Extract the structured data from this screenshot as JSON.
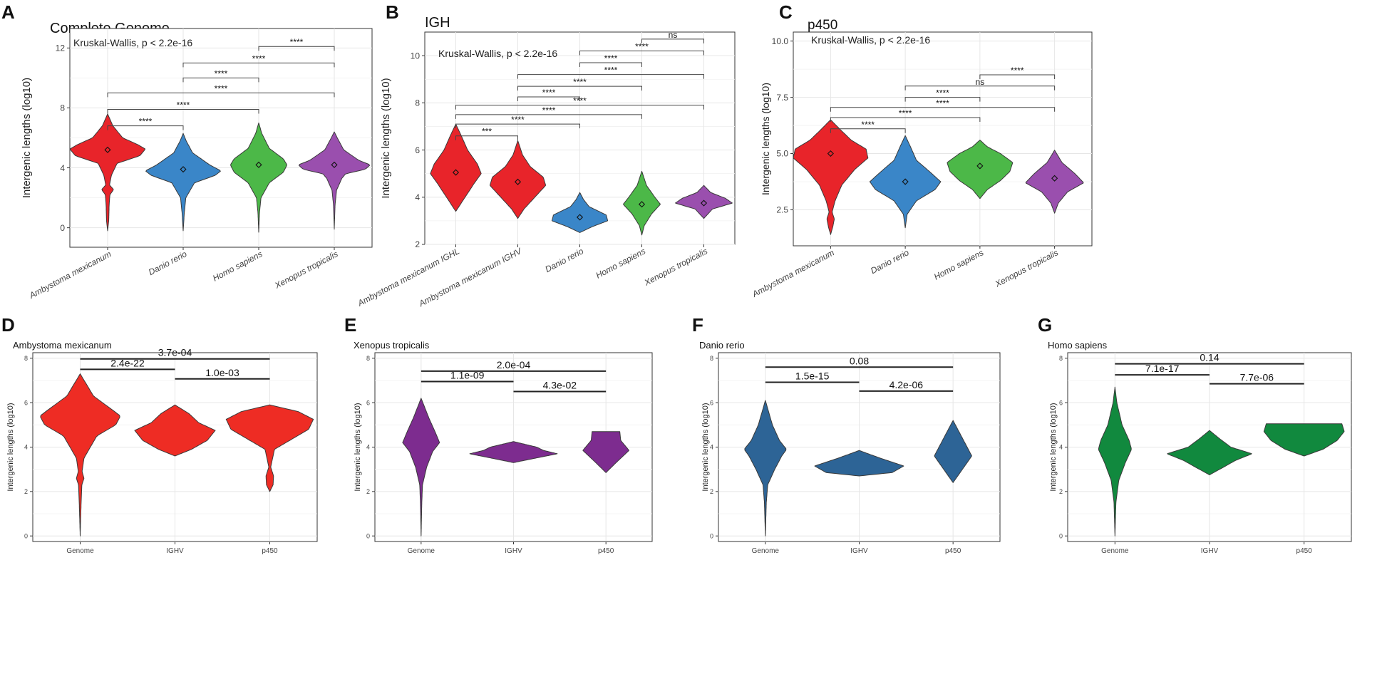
{
  "chart_data": [
    {
      "type": "violin",
      "panel": "A",
      "title": "Complete Genome",
      "annotation": "Kruskal-Wallis, p < 2.2e-16",
      "ylabel": "Intergenic lengths (log10)",
      "xlabel": "",
      "ylim": [
        -1.3,
        13.3
      ],
      "yticks": [
        "0",
        "4",
        "8",
        "12"
      ],
      "categories": [
        "Ambystoma mexicanum",
        "Danio rerio",
        "Homo sapiens",
        "Xenopus tropicalis"
      ],
      "colors": [
        "#e8242a",
        "#3a86c8",
        "#4cb848",
        "#9a4fae"
      ],
      "grid": true,
      "series": [
        {
          "category": "Ambystoma mexicanum",
          "mean": 5.2,
          "min": -0.2,
          "max": 7.6
        },
        {
          "category": "Danio rerio",
          "mean": 3.9,
          "min": -0.2,
          "max": 6.3
        },
        {
          "category": "Homo sapiens",
          "mean": 4.2,
          "min": -0.3,
          "max": 7.0
        },
        {
          "category": "Xenopus tropicalis",
          "mean": 4.2,
          "min": -0.1,
          "max": 6.4
        }
      ],
      "comparisons": [
        {
          "label": "****",
          "from": 2,
          "to": 3,
          "y": 12.1
        },
        {
          "label": "****",
          "from": 1,
          "to": 3,
          "y": 11.0
        },
        {
          "label": "****",
          "from": 1,
          "to": 2,
          "y": 10.0
        },
        {
          "label": "****",
          "from": 0,
          "to": 3,
          "y": 9.0
        },
        {
          "label": "****",
          "from": 0,
          "to": 2,
          "y": 7.9
        },
        {
          "label": "****",
          "from": 0,
          "to": 1,
          "y": 6.8
        }
      ]
    },
    {
      "type": "violin",
      "panel": "B",
      "title": "IGH",
      "annotation": "Kruskal-Wallis, p < 2.2e-16",
      "ylabel": "Intergenic lengths (log10)",
      "xlabel": "",
      "ylim": [
        2.0,
        11.0
      ],
      "yticks": [
        "2",
        "4",
        "6",
        "8",
        "10"
      ],
      "categories": [
        "Ambystoma mexicanum IGHL",
        "Ambystoma mexicanum IGHV",
        "Danio rerio",
        "Homo sapiens",
        "Xenopus tropicalis"
      ],
      "colors": [
        "#e8242a",
        "#e8242a",
        "#3a86c8",
        "#4cb848",
        "#9a4fae"
      ],
      "grid": true,
      "series": [
        {
          "category": "Ambystoma mexicanum IGHL",
          "mean": 5.05,
          "min": 3.4,
          "max": 7.1
        },
        {
          "category": "Ambystoma mexicanum IGHV",
          "mean": 4.65,
          "min": 3.1,
          "max": 6.4
        },
        {
          "category": "Danio rerio",
          "mean": 3.15,
          "min": 2.5,
          "max": 4.2
        },
        {
          "category": "Homo sapiens",
          "mean": 3.7,
          "min": 2.4,
          "max": 5.1
        },
        {
          "category": "Xenopus tropicalis",
          "mean": 3.75,
          "min": 3.1,
          "max": 4.5
        }
      ],
      "comparisons": [
        {
          "label": "ns",
          "from": 3,
          "to": 4,
          "y": 10.7
        },
        {
          "label": "****",
          "from": 2,
          "to": 4,
          "y": 10.2
        },
        {
          "label": "****",
          "from": 2,
          "to": 3,
          "y": 9.7
        },
        {
          "label": "****",
          "from": 1,
          "to": 4,
          "y": 9.2
        },
        {
          "label": "****",
          "from": 1,
          "to": 3,
          "y": 8.7
        },
        {
          "label": "****",
          "from": 1,
          "to": 2,
          "y": 8.25
        },
        {
          "label": "****",
          "from": 0,
          "to": 4,
          "y": 7.9
        },
        {
          "label": "****",
          "from": 0,
          "to": 3,
          "y": 7.5
        },
        {
          "label": "****",
          "from": 0,
          "to": 2,
          "y": 7.1
        },
        {
          "label": "***",
          "from": 0,
          "to": 1,
          "y": 6.6
        }
      ]
    },
    {
      "type": "violin",
      "panel": "C",
      "title": "p450",
      "annotation": "Kruskal-Wallis, p < 2.2e-16",
      "ylabel": "Intergenic lengths (log10)",
      "xlabel": "",
      "ylim": [
        0.9,
        10.4
      ],
      "yticks": [
        "2.5",
        "5.0",
        "7.5",
        "10.0"
      ],
      "categories": [
        "Ambystoma mexicanum",
        "Danio rerio",
        "Homo sapiens",
        "Xenopus tropicalis"
      ],
      "colors": [
        "#e8242a",
        "#3a86c8",
        "#4cb848",
        "#9a4fae"
      ],
      "grid": true,
      "series": [
        {
          "category": "Ambystoma mexicanum",
          "mean": 5.0,
          "min": 1.4,
          "max": 6.5
        },
        {
          "category": "Danio rerio",
          "mean": 3.75,
          "min": 1.7,
          "max": 5.8
        },
        {
          "category": "Homo sapiens",
          "mean": 4.45,
          "min": 3.0,
          "max": 5.6
        },
        {
          "category": "Xenopus tropicalis",
          "mean": 3.9,
          "min": 2.35,
          "max": 5.15
        }
      ],
      "comparisons": [
        {
          "label": "****",
          "from": 2,
          "to": 3,
          "y": 8.5
        },
        {
          "label": "ns",
          "from": 1,
          "to": 3,
          "y": 8.0
        },
        {
          "label": "****",
          "from": 1,
          "to": 2,
          "y": 7.5
        },
        {
          "label": "****",
          "from": 0,
          "to": 3,
          "y": 7.05
        },
        {
          "label": "****",
          "from": 0,
          "to": 2,
          "y": 6.6
        },
        {
          "label": "****",
          "from": 0,
          "to": 1,
          "y": 6.1
        }
      ]
    },
    {
      "type": "violin",
      "panel": "D",
      "title": "Ambystoma mexicanum",
      "ylabel": "Intergenic lengths (log10)",
      "xlabel": "",
      "ylim": [
        -0.25,
        8.25
      ],
      "yticks": [
        "0",
        "2",
        "4",
        "6",
        "8"
      ],
      "categories": [
        "Genome",
        "IGHV",
        "p450"
      ],
      "colors": [
        "#ee2c24",
        "#ee2c24",
        "#ee2c24"
      ],
      "grid": true,
      "series": [
        {
          "category": "Genome",
          "min": 0.0,
          "max": 7.3
        },
        {
          "category": "IGHV",
          "min": 3.6,
          "max": 5.9
        },
        {
          "category": "p450",
          "min": 2.0,
          "max": 5.9
        }
      ],
      "comparisons": [
        {
          "label": "3.7e-04",
          "from": 0,
          "to": 2,
          "y": 7.97
        },
        {
          "label": "2.4e-22",
          "from": 0,
          "to": 1,
          "y": 7.5
        },
        {
          "label": "1.0e-03",
          "from": 1,
          "to": 2,
          "y": 7.07
        }
      ]
    },
    {
      "type": "violin",
      "panel": "E",
      "title": "Xenopus tropicalis",
      "ylabel": "Intergenic lengths (log10)",
      "xlabel": "",
      "ylim": [
        -0.25,
        8.25
      ],
      "yticks": [
        "0",
        "2",
        "4",
        "6",
        "8"
      ],
      "categories": [
        "Genome",
        "IGHV",
        "p450"
      ],
      "colors": [
        "#7d2c8f",
        "#7d2c8f",
        "#7d2c8f"
      ],
      "grid": true,
      "series": [
        {
          "category": "Genome",
          "min": 0.0,
          "max": 6.2
        },
        {
          "category": "IGHV",
          "min": 3.3,
          "max": 4.25
        },
        {
          "category": "p450",
          "min": 2.85,
          "max": 4.7
        }
      ],
      "comparisons": [
        {
          "label": "2.0e-04",
          "from": 0,
          "to": 2,
          "y": 7.42
        },
        {
          "label": "1.1e-09",
          "from": 0,
          "to": 1,
          "y": 6.95
        },
        {
          "label": "4.3e-02",
          "from": 1,
          "to": 2,
          "y": 6.5
        }
      ]
    },
    {
      "type": "violin",
      "panel": "F",
      "title": "Danio rerio",
      "ylabel": "Intergenic lengths (log10)",
      "xlabel": "",
      "ylim": [
        -0.25,
        8.25
      ],
      "yticks": [
        "0",
        "2",
        "4",
        "6",
        "8"
      ],
      "categories": [
        "Genome",
        "IGHV",
        "p450"
      ],
      "colors": [
        "#2d6496",
        "#2d6496",
        "#2d6496"
      ],
      "grid": true,
      "series": [
        {
          "category": "Genome",
          "min": 0.0,
          "max": 6.1
        },
        {
          "category": "IGHV",
          "min": 2.7,
          "max": 3.85
        },
        {
          "category": "p450",
          "min": 2.4,
          "max": 5.2
        }
      ],
      "comparisons": [
        {
          "label": "0.08",
          "from": 0,
          "to": 2,
          "y": 7.6
        },
        {
          "label": "1.5e-15",
          "from": 0,
          "to": 1,
          "y": 6.92
        },
        {
          "label": "4.2e-06",
          "from": 1,
          "to": 2,
          "y": 6.52
        }
      ]
    },
    {
      "type": "violin",
      "panel": "G",
      "title": "Homo sapiens",
      "ylabel": "Intergenic lengths (log10)",
      "xlabel": "",
      "ylim": [
        -0.25,
        8.25
      ],
      "yticks": [
        "0",
        "2",
        "4",
        "6",
        "8"
      ],
      "categories": [
        "Genome",
        "IGHV",
        "p450"
      ],
      "colors": [
        "#11893e",
        "#11893e",
        "#11893e"
      ],
      "grid": true,
      "series": [
        {
          "category": "Genome",
          "min": 0.0,
          "max": 6.7
        },
        {
          "category": "IGHV",
          "min": 2.75,
          "max": 4.75
        },
        {
          "category": "p450",
          "min": 3.6,
          "max": 5.05
        }
      ],
      "comparisons": [
        {
          "label": "0.14",
          "from": 0,
          "to": 2,
          "y": 7.75
        },
        {
          "label": "7.1e-17",
          "from": 0,
          "to": 1,
          "y": 7.25
        },
        {
          "label": "7.7e-06",
          "from": 1,
          "to": 2,
          "y": 6.85
        }
      ]
    }
  ]
}
